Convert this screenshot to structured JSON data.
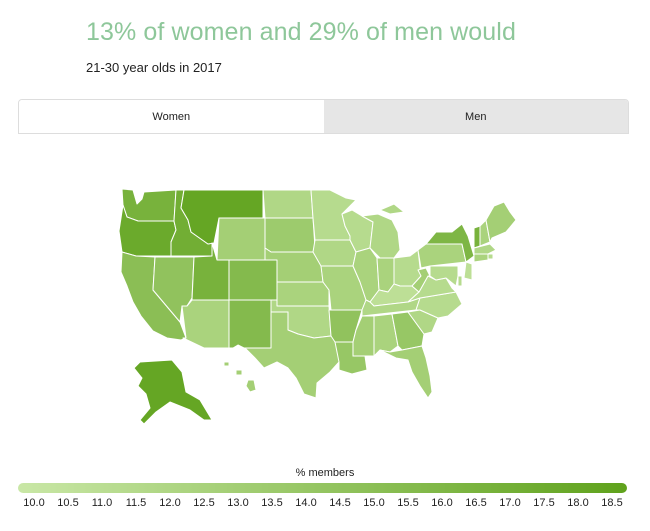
{
  "header": {
    "title": "13% of women and 29% of men would",
    "subtitle": "21-30 year olds in 2017"
  },
  "tabs": [
    {
      "label": "Women",
      "active": true
    },
    {
      "label": "Men",
      "active": false
    }
  ],
  "legend": {
    "title": "% members",
    "min": 10.0,
    "max": 18.5,
    "color_low": "#c9e7a6",
    "color_high": "#5fa21c",
    "ticks": [
      "10.0",
      "10.5",
      "11.0",
      "11.5",
      "12.0",
      "12.5",
      "13.0",
      "13.5",
      "14.0",
      "14.5",
      "15.0",
      "15.5",
      "16.0",
      "16.5",
      "17.0",
      "17.5",
      "18.0",
      "18.5"
    ]
  },
  "map": {
    "type": "choropleth",
    "region": "United States",
    "values_are_estimated_from_color": true,
    "states": [
      {
        "id": "WA",
        "value": 16.5
      },
      {
        "id": "OR",
        "value": 17.5
      },
      {
        "id": "CA",
        "value": 15.0
      },
      {
        "id": "ID",
        "value": 17.0
      },
      {
        "id": "NV",
        "value": 14.5
      },
      {
        "id": "MT",
        "value": 18.0
      },
      {
        "id": "WY",
        "value": 13.0
      },
      {
        "id": "UT",
        "value": 16.5
      },
      {
        "id": "CO",
        "value": 15.5
      },
      {
        "id": "AZ",
        "value": 12.5
      },
      {
        "id": "NM",
        "value": 15.5
      },
      {
        "id": "ND",
        "value": 12.0
      },
      {
        "id": "SD",
        "value": 13.5
      },
      {
        "id": "NE",
        "value": 13.0
      },
      {
        "id": "KS",
        "value": 12.5
      },
      {
        "id": "OK",
        "value": 12.0
      },
      {
        "id": "TX",
        "value": 13.0
      },
      {
        "id": "MN",
        "value": 11.5
      },
      {
        "id": "IA",
        "value": 12.0
      },
      {
        "id": "MO",
        "value": 12.5
      },
      {
        "id": "AR",
        "value": 14.5
      },
      {
        "id": "LA",
        "value": 14.0
      },
      {
        "id": "WI",
        "value": 11.5
      },
      {
        "id": "IL",
        "value": 12.5
      },
      {
        "id": "MI",
        "value": 12.0
      },
      {
        "id": "IN",
        "value": 12.5
      },
      {
        "id": "OH",
        "value": 11.5
      },
      {
        "id": "KY",
        "value": 11.0
      },
      {
        "id": "TN",
        "value": 12.0
      },
      {
        "id": "MS",
        "value": 13.0
      },
      {
        "id": "AL",
        "value": 12.5
      },
      {
        "id": "GA",
        "value": 14.0
      },
      {
        "id": "FL",
        "value": 13.0
      },
      {
        "id": "SC",
        "value": 12.0
      },
      {
        "id": "NC",
        "value": 11.5
      },
      {
        "id": "VA",
        "value": 11.5
      },
      {
        "id": "WV",
        "value": 13.0
      },
      {
        "id": "PA",
        "value": 12.5
      },
      {
        "id": "NY",
        "value": 16.0
      },
      {
        "id": "VT",
        "value": 16.5
      },
      {
        "id": "NH",
        "value": 12.5
      },
      {
        "id": "ME",
        "value": 13.0
      },
      {
        "id": "MA",
        "value": 12.0
      },
      {
        "id": "RI",
        "value": 11.5
      },
      {
        "id": "CT",
        "value": 12.5
      },
      {
        "id": "NJ",
        "value": 11.0
      },
      {
        "id": "DE",
        "value": 11.5
      },
      {
        "id": "MD",
        "value": 11.5
      },
      {
        "id": "AK",
        "value": 18.0
      },
      {
        "id": "HI",
        "value": 13.0
      }
    ]
  }
}
